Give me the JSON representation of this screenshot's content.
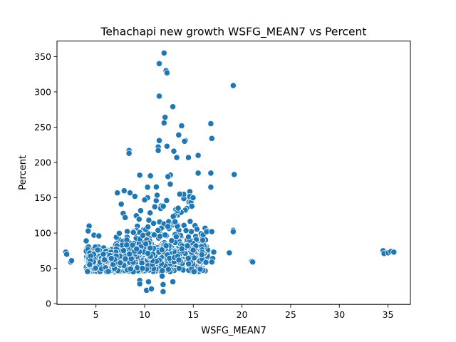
{
  "chart_data": {
    "type": "scatter",
    "title": "Tehachapi new growth WSFG_MEAN7 vs Percent",
    "xlabel": "WSFG_MEAN7",
    "ylabel": "Percent",
    "xlim": [
      1,
      37.3
    ],
    "ylim": [
      -1,
      372
    ],
    "xticks": [
      5,
      10,
      15,
      20,
      25,
      30,
      35
    ],
    "yticks": [
      0,
      50,
      100,
      150,
      200,
      250,
      300,
      350
    ],
    "grid": false,
    "legend": "none",
    "colors": {
      "marker": "#1f77b4",
      "marker_edge": "#ffffff"
    },
    "series": [
      {
        "points": [
          [
            1.9,
            73
          ],
          [
            2.0,
            70
          ],
          [
            2.4,
            59
          ],
          [
            2.5,
            61
          ],
          [
            34.5,
            75
          ],
          [
            34.6,
            71
          ],
          [
            35.0,
            72
          ],
          [
            35.3,
            74
          ],
          [
            35.6,
            73
          ],
          [
            18.7,
            72
          ],
          [
            21.0,
            60
          ],
          [
            21.1,
            59
          ],
          [
            19.1,
            309
          ],
          [
            19.2,
            183
          ],
          [
            19.1,
            104
          ],
          [
            19.1,
            102
          ],
          [
            12.0,
            355
          ],
          [
            11.5,
            340
          ],
          [
            12.2,
            330
          ],
          [
            12.3,
            327
          ],
          [
            11.5,
            294
          ],
          [
            12.9,
            279
          ],
          [
            12.1,
            264
          ],
          [
            12.0,
            256
          ],
          [
            16.8,
            255
          ],
          [
            13.8,
            252
          ],
          [
            13.5,
            239
          ],
          [
            14.2,
            231
          ],
          [
            14.1,
            230
          ],
          [
            11.5,
            231
          ],
          [
            12.3,
            223
          ],
          [
            11.4,
            222
          ],
          [
            11.4,
            217
          ],
          [
            13.0,
            216
          ],
          [
            8.4,
            217
          ],
          [
            8.4,
            213
          ],
          [
            15.5,
            210
          ],
          [
            13.3,
            207
          ],
          [
            14.5,
            207
          ],
          [
            16.9,
            234
          ],
          [
            16.8,
            185
          ],
          [
            16.8,
            165
          ],
          [
            15.5,
            185
          ],
          [
            9.5,
            182
          ],
          [
            10.6,
            181
          ],
          [
            12.4,
            180
          ],
          [
            10.3,
            165
          ],
          [
            10.3,
            150
          ],
          [
            9.0,
            152
          ],
          [
            10.0,
            147
          ],
          [
            7.2,
            157
          ],
          [
            7.9,
            160
          ],
          [
            8.5,
            157
          ],
          [
            7.6,
            141
          ],
          [
            7.8,
            128
          ],
          [
            8.0,
            122
          ],
          [
            9.5,
            33
          ],
          [
            9.5,
            28
          ],
          [
            10.2,
            19
          ],
          [
            10.7,
            21
          ],
          [
            10.4,
            31
          ],
          [
            12.9,
            31
          ],
          [
            11.9,
            17
          ],
          [
            11.9,
            27
          ],
          [
            11.8,
            39
          ],
          [
            17.1,
            73
          ],
          [
            17.0,
            64
          ],
          [
            16.9,
            59
          ],
          [
            16.9,
            102
          ],
          [
            4.8,
            97
          ],
          [
            4.3,
            110
          ],
          [
            4.2,
            103
          ],
          [
            4.0,
            89
          ],
          [
            5.3,
            96
          ]
        ]
      }
    ]
  }
}
